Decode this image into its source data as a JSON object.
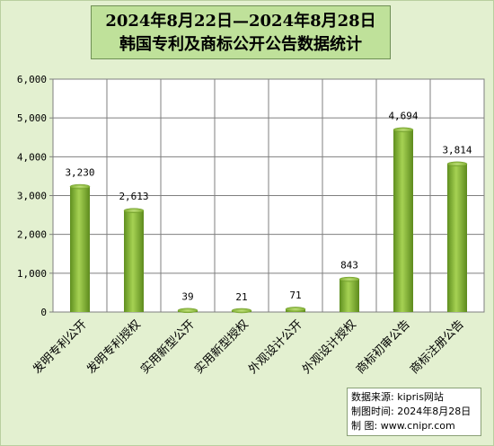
{
  "chart_data": {
    "type": "bar",
    "title": "2024年8月22日—2024年8月28日",
    "subtitle": "韩国专利及商标公开公告数据统计",
    "categories": [
      "发明专利公开",
      "发明专利授权",
      "实用新型公开",
      "实用新型授权",
      "外观设计公开",
      "外观设计授权",
      "商标初审公告",
      "商标注册公告"
    ],
    "values": [
      3230,
      2613,
      39,
      21,
      71,
      843,
      4694,
      3814
    ],
    "data_labels": [
      "3,230",
      "2,613",
      "39",
      "21",
      "71",
      "843",
      "4,694",
      "3,814"
    ],
    "ylim": [
      0,
      6000
    ],
    "yticks": [
      0,
      1000,
      2000,
      3000,
      4000,
      5000,
      6000
    ],
    "ytick_labels": [
      "0",
      "1,000",
      "2,000",
      "3,000",
      "4,000",
      "5,000",
      "6,000"
    ],
    "grid": true,
    "bar_color": "#8bbf3a"
  },
  "source": {
    "line1": "数据来源: kipris网站",
    "line2": "制图时间: 2024年8月28日",
    "line3": "制    图: www.cnipr.com"
  }
}
